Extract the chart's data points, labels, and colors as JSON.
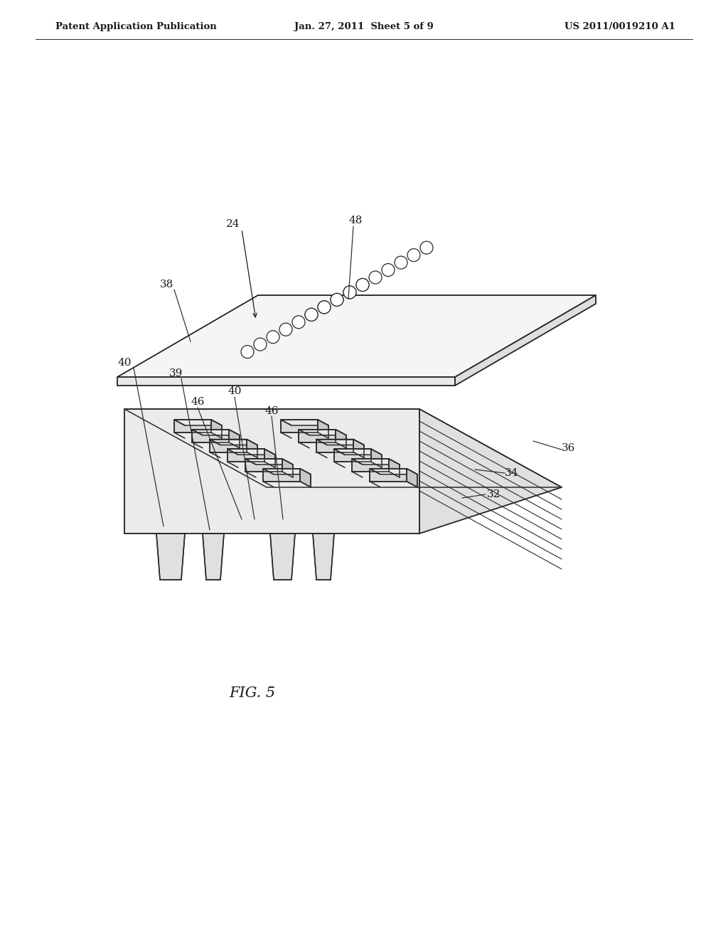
{
  "background_color": "#ffffff",
  "line_color": "#2a2a2a",
  "text_color": "#1a1a1a",
  "header_left": "Patent Application Publication",
  "header_center": "Jan. 27, 2011  Sheet 5 of 9",
  "header_right": "US 2011/0019210 A1",
  "figure_label": "FIG. 5",
  "header_fontsize": 9.5,
  "label_fontsize": 11,
  "fig_label_fontsize": 15,
  "face_top_plate": "#f5f5f5",
  "face_front_plate": "#e8e8e8",
  "face_right_plate": "#dedede",
  "face_top_block": "#f2f2f2",
  "face_front_block": "#ebebeb",
  "face_right_block": "#e0e0e0",
  "face_slot_inner": "#c8c8c8",
  "face_rib_top": "#e8e8e8"
}
